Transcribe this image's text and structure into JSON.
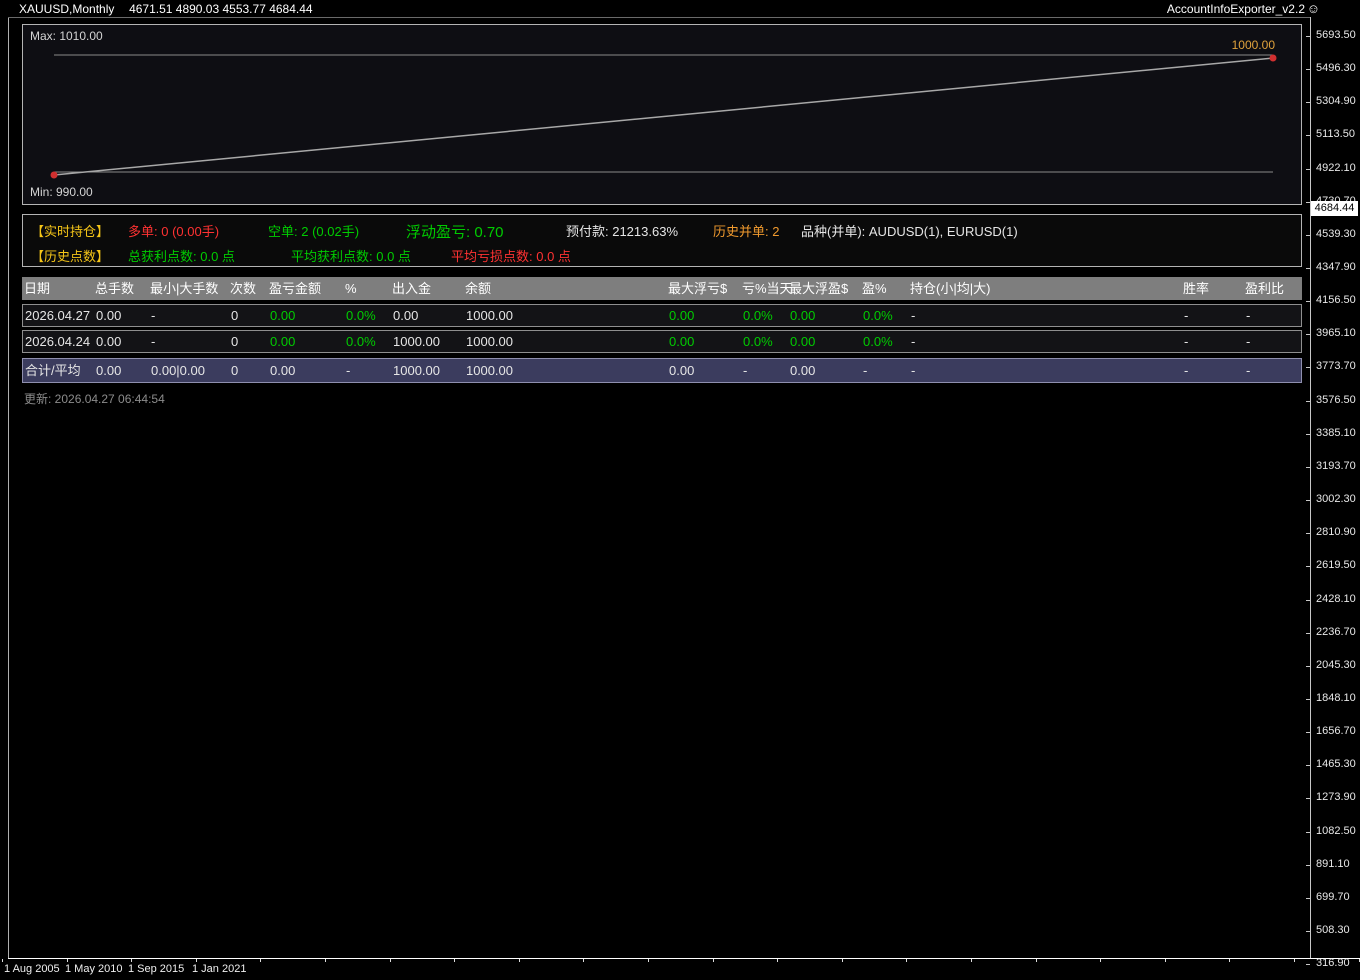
{
  "palette": {
    "white": "#e6e6e6",
    "green": "#00cc00",
    "red": "#ff3232",
    "gold": "#f5c518",
    "orange": "#f09a2e",
    "axis_text": "#e8e8e8",
    "header_bg": "#7e7e7e",
    "total_row_bg": "#3b3c5e",
    "dot_red": "#d13030",
    "line_gray": "#a8a8a8"
  },
  "title_bar": {
    "symbol": "XAUUSD,Monthly",
    "ohlc": "4671.51 4890.03 4553.77 4684.44",
    "indicator": "AccountInfoExporter_v2.2",
    "smiley": "☺"
  },
  "equity_chart": {
    "max_label": "Max: 1010.00",
    "min_label": "Min: 990.00",
    "end_label": "1000.00"
  },
  "chart_data": {
    "type": "line",
    "series": [
      {
        "name": "balance",
        "start_level": 990,
        "end_level": 1000
      }
    ],
    "annotations": {
      "max": 1010.0,
      "min": 990.0,
      "end": 1000.0
    },
    "grid": "off",
    "legend": "none"
  },
  "info_panel": {
    "row1": [
      {
        "label": "【实时持仓】",
        "color": "gold"
      },
      {
        "label": "多单: 0 (0.00手)",
        "color": "red"
      },
      {
        "label": "空单: 2 (0.02手)",
        "color": "green"
      },
      {
        "label": "浮动盈亏: 0.70",
        "color": "green",
        "big": true
      },
      {
        "label": "预付款: 21213.63%",
        "color": "white"
      },
      {
        "label": "历史并单: 2",
        "color": "orange"
      },
      {
        "label": "品种(并单): AUDUSD(1), EURUSD(1)",
        "color": "white"
      }
    ],
    "row2": [
      {
        "label": "【历史点数】",
        "color": "gold"
      },
      {
        "label": "总获利点数: 0.0 点",
        "color": "green"
      },
      {
        "label": "平均获利点数: 0.0 点",
        "color": "green"
      },
      {
        "label": "平均亏损点数: 0.0 点",
        "color": "red"
      }
    ]
  },
  "table": {
    "headers": [
      "日期",
      "总手数",
      "最小|大手数",
      "次数",
      "盈亏金额",
      "%",
      "出入金",
      "余额",
      "最大浮亏$",
      "亏%当天",
      "最大浮盈$",
      "盈%",
      "持仓(小|均|大)",
      "胜率",
      "盈利比"
    ],
    "rows": [
      {
        "cells": [
          "2026.04.27",
          "0.00",
          "-",
          "0",
          "0.00",
          "0.0%",
          "0.00",
          "1000.00",
          "0.00",
          "0.0%",
          "0.00",
          "0.0%",
          "-",
          "-",
          "-"
        ],
        "colors": [
          "white",
          "white",
          "white",
          "white",
          "green",
          "green",
          "white",
          "white",
          "green",
          "green",
          "green",
          "green",
          "white",
          "white",
          "white"
        ]
      },
      {
        "cells": [
          "2026.04.24",
          "0.00",
          "-",
          "0",
          "0.00",
          "0.0%",
          "1000.00",
          "1000.00",
          "0.00",
          "0.0%",
          "0.00",
          "0.0%",
          "-",
          "-",
          "-"
        ],
        "colors": [
          "white",
          "white",
          "white",
          "white",
          "green",
          "green",
          "white",
          "white",
          "green",
          "green",
          "green",
          "green",
          "white",
          "white",
          "white"
        ]
      }
    ],
    "total": {
      "cells": [
        "合计/平均",
        "0.00",
        "0.00|0.00",
        "0",
        "0.00",
        "-",
        "1000.00",
        "1000.00",
        "0.00",
        "-",
        "0.00",
        "-",
        "-",
        "-",
        "-"
      ],
      "colors": [
        "white",
        "white",
        "white",
        "white",
        "white",
        "white",
        "white",
        "white",
        "white",
        "white",
        "white",
        "white",
        "white",
        "white",
        "white"
      ]
    }
  },
  "updated": "更新: 2026.04.27 06:44:54",
  "price_axis": {
    "labels": [
      "5693.50",
      "5496.30",
      "5304.90",
      "5113.50",
      "4922.10",
      "4730.70",
      "4539.30",
      "4347.90",
      "4156.50",
      "3965.10",
      "3773.70",
      "3576.50",
      "3385.10",
      "3193.70",
      "3002.30",
      "2810.90",
      "2619.50",
      "2428.10",
      "2236.70",
      "2045.30",
      "1848.10",
      "1656.70",
      "1465.30",
      "1273.90",
      "1082.50",
      "891.10",
      "699.70",
      "508.30",
      "316.90"
    ],
    "current": "4684.44"
  },
  "time_axis": {
    "labels": [
      "1 Aug 2005",
      "1 May 2010",
      "1 Sep 2015",
      "1 Jan 2021"
    ]
  }
}
